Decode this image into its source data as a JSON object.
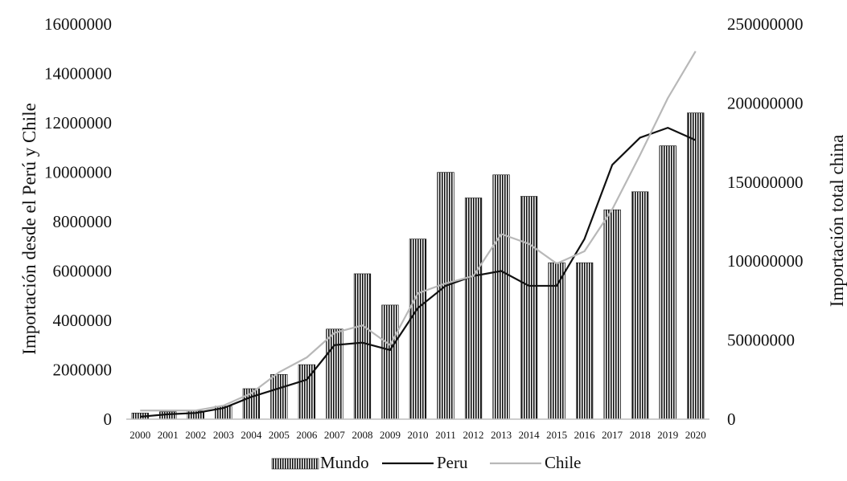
{
  "chart_data": {
    "type": "bar",
    "categories": [
      "2000",
      "2001",
      "2002",
      "2003",
      "2004",
      "2005",
      "2006",
      "2007",
      "2008",
      "2009",
      "2010",
      "2011",
      "2012",
      "2013",
      "2014",
      "2015",
      "2016",
      "2017",
      "2018",
      "2019",
      "2020"
    ],
    "ylabel_left": "Importación desde el Perú y Chile",
    "ylabel_right": "Importación total china",
    "ylim_left": [
      0,
      16000000
    ],
    "yticks_left": [
      "0",
      "2000000",
      "4000000",
      "6000000",
      "8000000",
      "10000000",
      "12000000",
      "14000000",
      "16000000"
    ],
    "ylim_right": [
      0,
      250000000
    ],
    "yticks_right": [
      "0",
      "50000000",
      "100000000",
      "150000000",
      "200000000",
      "250000000"
    ],
    "legend_position": "bottom",
    "series": [
      {
        "name": "Mundo",
        "kind": "bar",
        "axis": "right",
        "color": "#111111",
        "pattern": "vertical-stripes",
        "values": [
          3880000,
          4650000,
          5200000,
          8200000,
          19300000,
          28300000,
          34500000,
          57000000,
          92000000,
          72200000,
          114000000,
          156200000,
          140000000,
          154600000,
          141000000,
          99000000,
          99000000,
          132500000,
          143900000,
          173000000,
          193800000
        ]
      },
      {
        "name": "Peru",
        "kind": "line",
        "axis": "left",
        "color": "#111111",
        "values": [
          100000,
          200000,
          250000,
          450000,
          900000,
          1250000,
          1600000,
          3000000,
          3100000,
          2800000,
          4500000,
          5400000,
          5800000,
          6000000,
          5400000,
          5400000,
          7300000,
          10300000,
          11400000,
          11800000,
          11300000
        ]
      },
      {
        "name": "Chile",
        "kind": "line",
        "axis": "left",
        "color": "#b8b8b8",
        "values": [
          350000,
          350000,
          350000,
          550000,
          1050000,
          1900000,
          2500000,
          3500000,
          3800000,
          3000000,
          5100000,
          5500000,
          5800000,
          7500000,
          7100000,
          6300000,
          6800000,
          8500000,
          10700000,
          13000000,
          14900000
        ]
      }
    ]
  }
}
